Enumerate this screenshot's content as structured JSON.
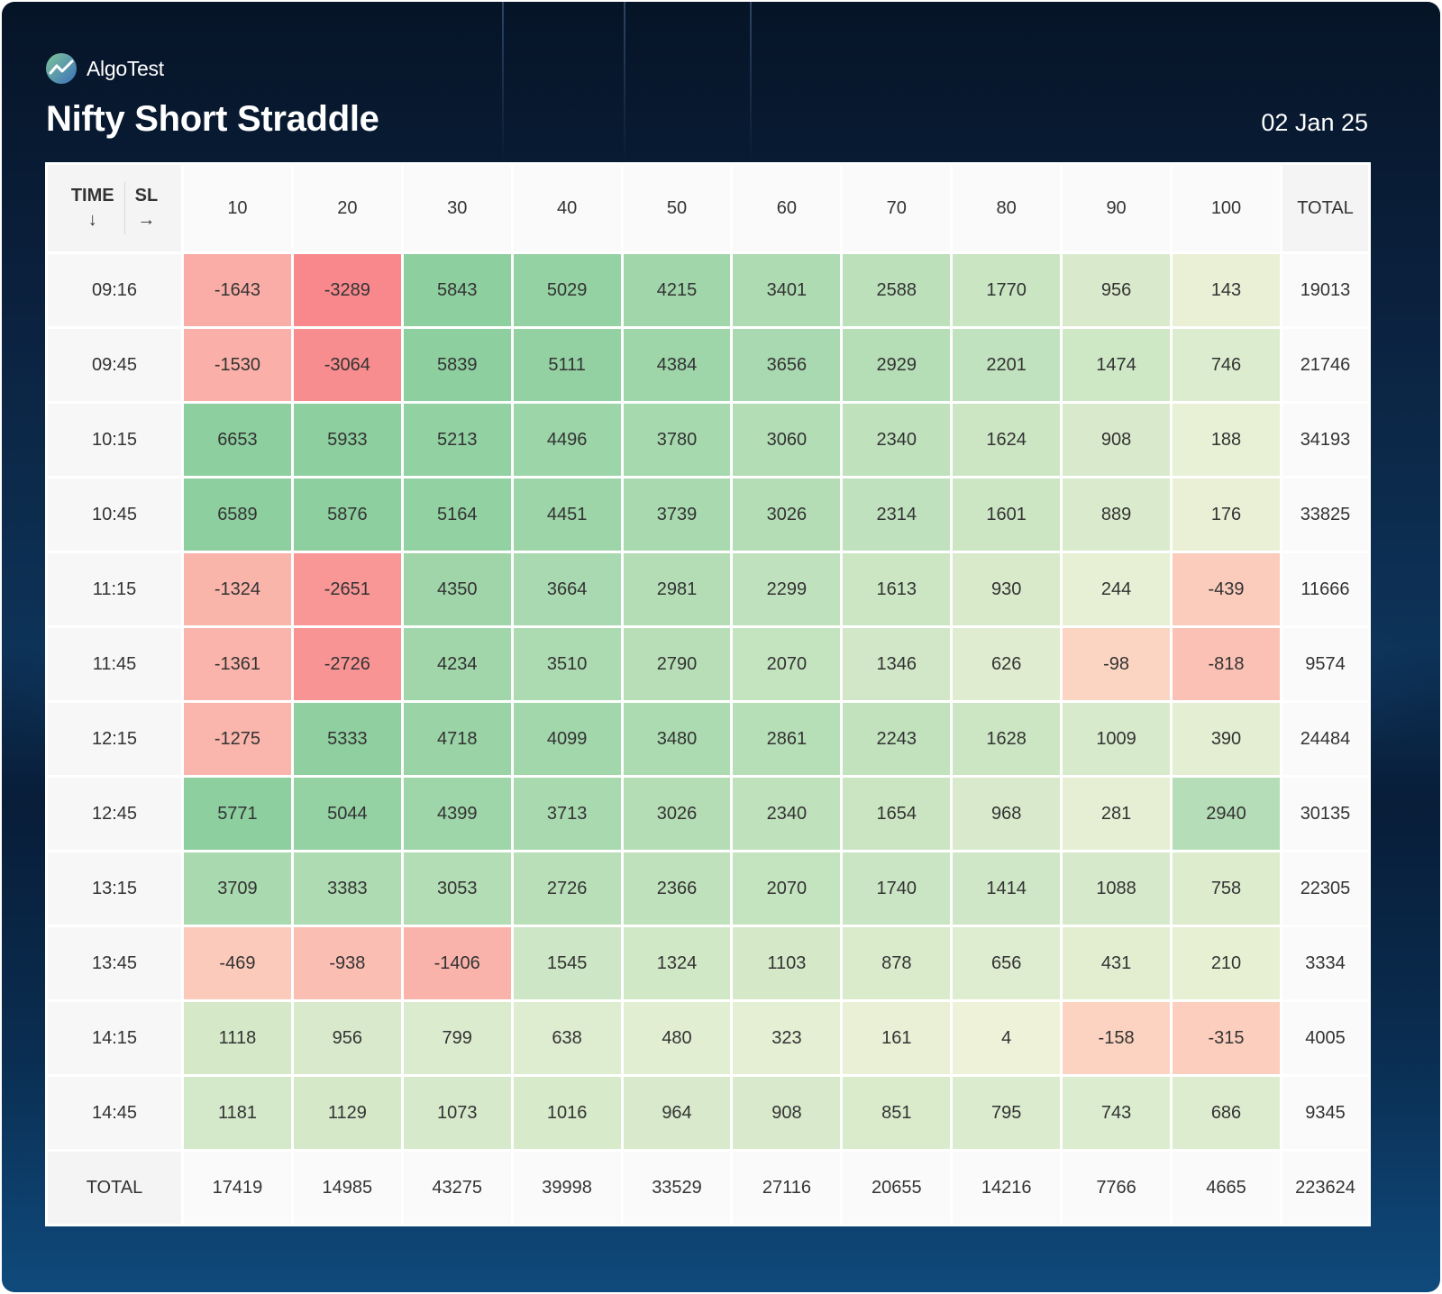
{
  "brand": {
    "name": "AlgoTest",
    "logo_icon": "algotest-logo-icon"
  },
  "title": "Nifty Short Straddle",
  "date": "02 Jan 25",
  "table": {
    "corner": {
      "time_label": "TIME",
      "time_arrow": "↓",
      "sl_label": "SL",
      "sl_arrow": "→"
    },
    "columns": [
      "10",
      "20",
      "30",
      "40",
      "50",
      "60",
      "70",
      "80",
      "90",
      "100"
    ],
    "total_label": "TOTAL",
    "rows": [
      {
        "time": "09:16",
        "values": [
          -1643,
          -3289,
          5843,
          5029,
          4215,
          3401,
          2588,
          1770,
          956,
          143
        ],
        "total": "19013"
      },
      {
        "time": "09:45",
        "values": [
          -1530,
          -3064,
          5839,
          5111,
          4384,
          3656,
          2929,
          2201,
          1474,
          746
        ],
        "total": "21746"
      },
      {
        "time": "10:15",
        "values": [
          6653,
          5933,
          5213,
          4496,
          3780,
          3060,
          2340,
          1624,
          908,
          188
        ],
        "total": "34193"
      },
      {
        "time": "10:45",
        "values": [
          6589,
          5876,
          5164,
          4451,
          3739,
          3026,
          2314,
          1601,
          889,
          176
        ],
        "total": "33825"
      },
      {
        "time": "11:15",
        "values": [
          -1324,
          -2651,
          4350,
          3664,
          2981,
          2299,
          1613,
          930,
          244,
          -439
        ],
        "total": "11666"
      },
      {
        "time": "11:45",
        "values": [
          -1361,
          -2726,
          4234,
          3510,
          2790,
          2070,
          1346,
          626,
          -98,
          -818
        ],
        "total": "9574"
      },
      {
        "time": "12:15",
        "values": [
          -1275,
          5333,
          4718,
          4099,
          3480,
          2861,
          2243,
          1628,
          1009,
          390
        ],
        "total": "24484"
      },
      {
        "time": "12:45",
        "values": [
          5771,
          5044,
          4399,
          3713,
          3026,
          2340,
          1654,
          968,
          281,
          2940
        ],
        "total": "30135"
      },
      {
        "time": "13:15",
        "values": [
          3709,
          3383,
          3053,
          2726,
          2366,
          2070,
          1740,
          1414,
          1088,
          758
        ],
        "total": "22305"
      },
      {
        "time": "13:45",
        "values": [
          -469,
          -938,
          -1406,
          1545,
          1324,
          1103,
          878,
          656,
          431,
          210
        ],
        "total": "3334"
      },
      {
        "time": "14:15",
        "values": [
          1118,
          956,
          799,
          638,
          480,
          323,
          161,
          4,
          -158,
          -315
        ],
        "total": "4005"
      },
      {
        "time": "14:45",
        "values": [
          1181,
          1129,
          1073,
          1016,
          964,
          908,
          851,
          795,
          743,
          686
        ],
        "total": "9345"
      }
    ],
    "column_totals": [
      "17419",
      "14985",
      "43275",
      "39998",
      "33529",
      "27116",
      "20655",
      "14216",
      "7766",
      "4665"
    ],
    "grand_total": "223624"
  },
  "colors": {
    "positive_strong": "#8dcf9f",
    "positive_light": "#eef2d8",
    "negative_light": "#fcd8c4",
    "negative_strong": "#f8888c"
  }
}
